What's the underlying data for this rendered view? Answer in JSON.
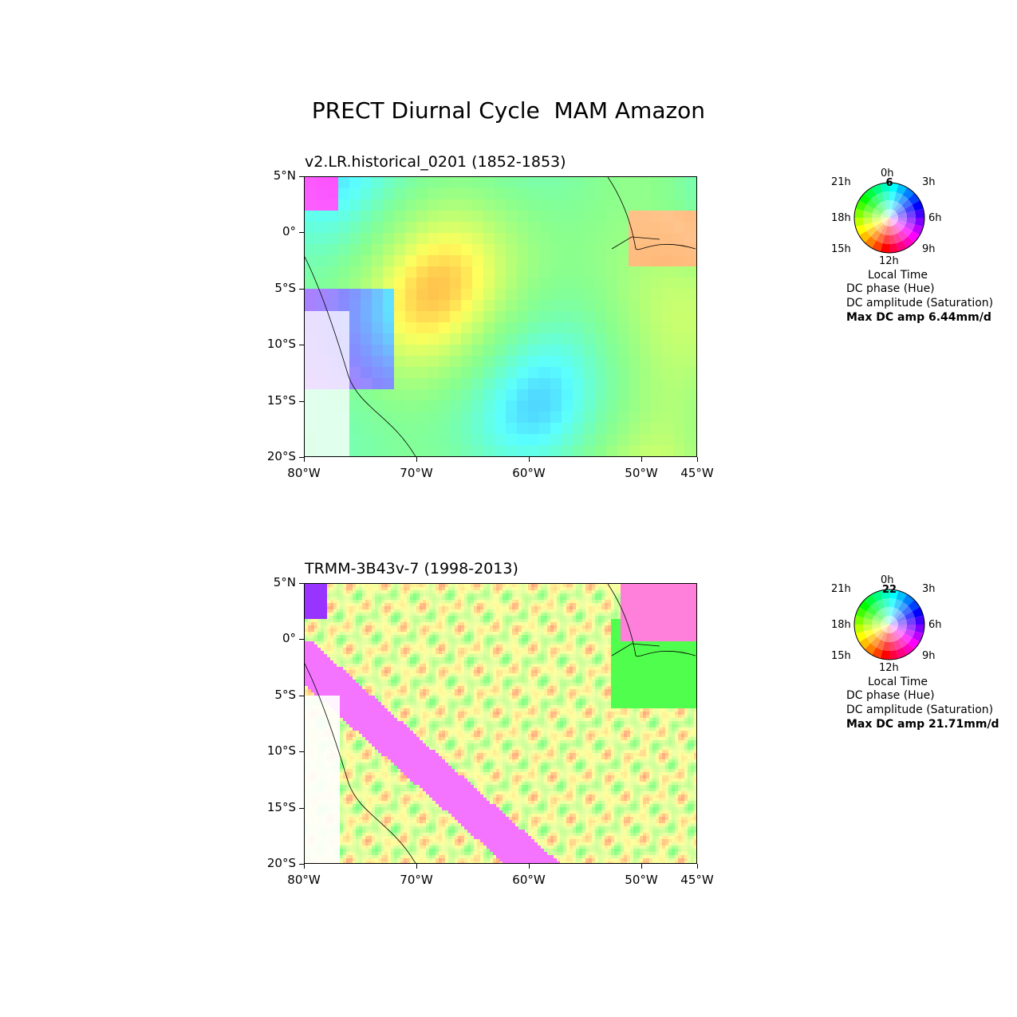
{
  "title": "PRECT Diurnal Cycle  MAM Amazon",
  "panels": [
    {
      "subtitle": "v2.LR.historical_0201 (1852-1853)",
      "wheel_max_label": "6",
      "max_dc_amp": "Max DC amp 6.44mm/d"
    },
    {
      "subtitle": "TRMM-3B43v-7 (1998-2013)",
      "wheel_max_label": "22",
      "max_dc_amp": "Max DC amp 21.71mm/d"
    }
  ],
  "lat_ticks": [
    "5°N",
    "0°",
    "5°S",
    "10°S",
    "15°S",
    "20°S"
  ],
  "lon_ticks": [
    "80°W",
    "70°W",
    "60°W",
    "50°W",
    "45°W"
  ],
  "lat_values": [
    5,
    0,
    -5,
    -10,
    -15,
    -20
  ],
  "lon_values": [
    -80,
    -70,
    -60,
    -50,
    -45
  ],
  "extent": {
    "lon": [
      -80,
      -45
    ],
    "lat": [
      -20,
      5
    ]
  },
  "wheel_hours": [
    "0h",
    "3h",
    "6h",
    "9h",
    "12h",
    "15h",
    "18h",
    "21h"
  ],
  "legend": {
    "local_time": "Local Time",
    "phase": "DC phase (Hue)",
    "amplitude": "DC amplitude (Saturation)"
  }
}
